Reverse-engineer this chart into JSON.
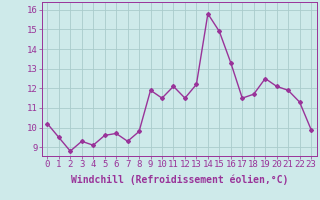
{
  "x": [
    0,
    1,
    2,
    3,
    4,
    5,
    6,
    7,
    8,
    9,
    10,
    11,
    12,
    13,
    14,
    15,
    16,
    17,
    18,
    19,
    20,
    21,
    22,
    23
  ],
  "y": [
    10.2,
    9.5,
    8.8,
    9.3,
    9.1,
    9.6,
    9.7,
    9.3,
    9.8,
    11.9,
    11.5,
    12.1,
    11.5,
    12.2,
    15.8,
    14.9,
    13.3,
    11.5,
    11.7,
    12.5,
    12.1,
    11.9,
    11.3,
    9.9
  ],
  "line_color": "#993399",
  "marker": "D",
  "marker_size": 2,
  "line_width": 1.0,
  "bg_color": "#ceeaea",
  "grid_color": "#aacccc",
  "xlabel": "Windchill (Refroidissement éolien,°C)",
  "xlabel_fontsize": 7,
  "ylabel_ticks": [
    9,
    10,
    11,
    12,
    13,
    14,
    15,
    16
  ],
  "xtick_labels": [
    "0",
    "1",
    "2",
    "3",
    "4",
    "5",
    "6",
    "7",
    "8",
    "9",
    "10",
    "11",
    "12",
    "13",
    "14",
    "15",
    "16",
    "17",
    "18",
    "19",
    "20",
    "21",
    "22",
    "23"
  ],
  "ylim": [
    8.55,
    16.4
  ],
  "xlim": [
    -0.5,
    23.5
  ],
  "tick_fontsize": 6.5
}
